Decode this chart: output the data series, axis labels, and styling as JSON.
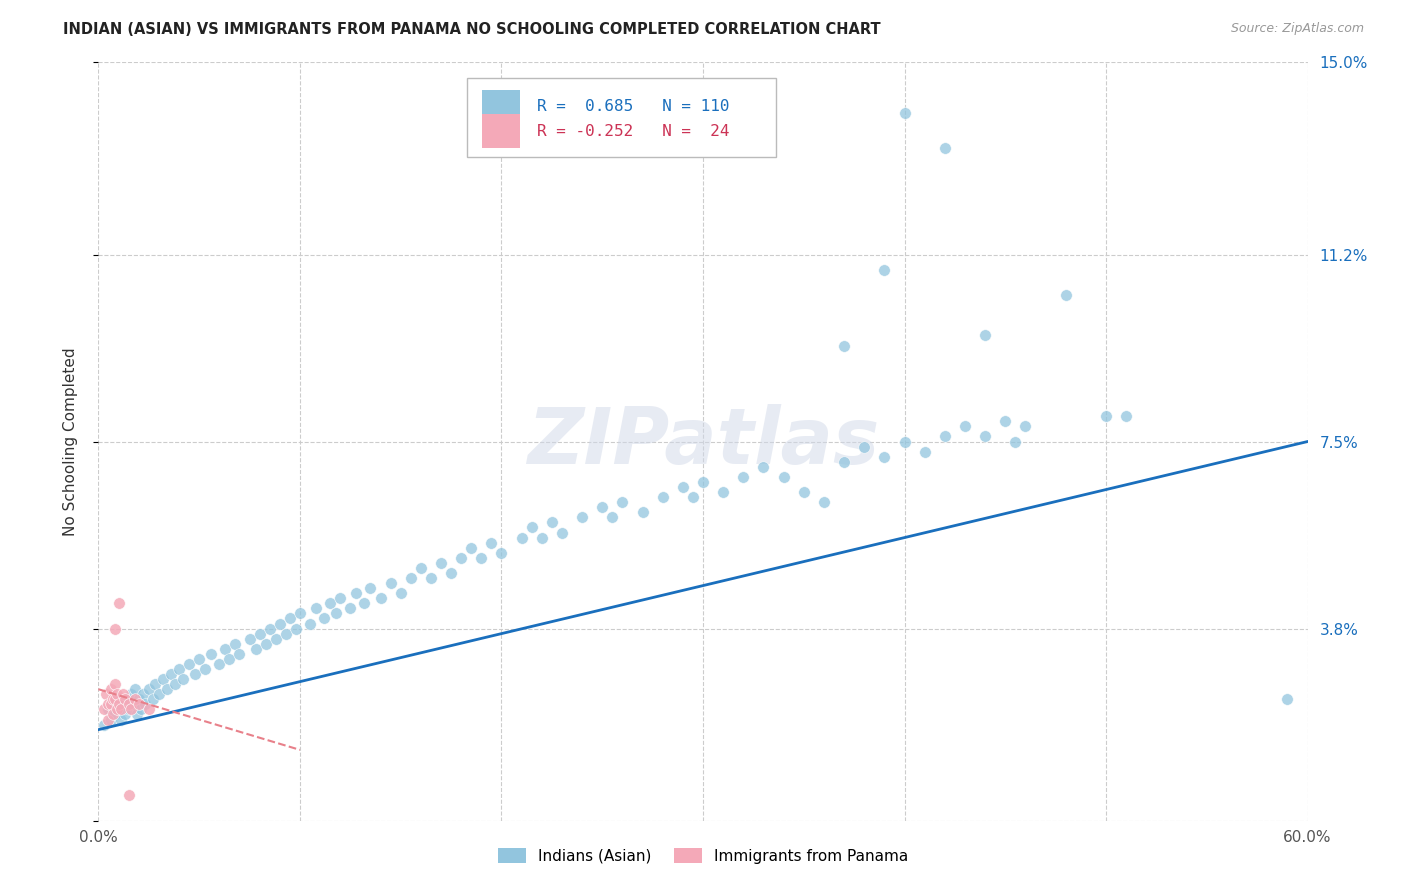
{
  "title": "INDIAN (ASIAN) VS IMMIGRANTS FROM PANAMA NO SCHOOLING COMPLETED CORRELATION CHART",
  "source": "Source: ZipAtlas.com",
  "ylabel": "No Schooling Completed",
  "xlim": [
    0.0,
    0.6
  ],
  "ylim": [
    0.0,
    0.15
  ],
  "yticks": [
    0.0,
    0.038,
    0.075,
    0.112,
    0.15
  ],
  "ytick_labels": [
    "",
    "3.8%",
    "7.5%",
    "11.2%",
    "15.0%"
  ],
  "xtick_labels": [
    "0.0%",
    "",
    "",
    "",
    "",
    "",
    "60.0%"
  ],
  "blue_color": "#92c5de",
  "pink_color": "#f4a9b8",
  "blue_line_color": "#1a6fbd",
  "pink_line_color": "#e8808a",
  "background_color": "#ffffff",
  "grid_color": "#cccccc",
  "blue_scatter": [
    [
      0.003,
      0.019
    ],
    [
      0.005,
      0.022
    ],
    [
      0.006,
      0.02
    ],
    [
      0.007,
      0.023
    ],
    [
      0.008,
      0.021
    ],
    [
      0.009,
      0.024
    ],
    [
      0.01,
      0.022
    ],
    [
      0.011,
      0.02
    ],
    [
      0.012,
      0.023
    ],
    [
      0.013,
      0.021
    ],
    [
      0.014,
      0.024
    ],
    [
      0.015,
      0.022
    ],
    [
      0.016,
      0.025
    ],
    [
      0.017,
      0.023
    ],
    [
      0.018,
      0.026
    ],
    [
      0.019,
      0.021
    ],
    [
      0.02,
      0.024
    ],
    [
      0.021,
      0.022
    ],
    [
      0.022,
      0.025
    ],
    [
      0.023,
      0.023
    ],
    [
      0.025,
      0.026
    ],
    [
      0.027,
      0.024
    ],
    [
      0.028,
      0.027
    ],
    [
      0.03,
      0.025
    ],
    [
      0.032,
      0.028
    ],
    [
      0.034,
      0.026
    ],
    [
      0.036,
      0.029
    ],
    [
      0.038,
      0.027
    ],
    [
      0.04,
      0.03
    ],
    [
      0.042,
      0.028
    ],
    [
      0.045,
      0.031
    ],
    [
      0.048,
      0.029
    ],
    [
      0.05,
      0.032
    ],
    [
      0.053,
      0.03
    ],
    [
      0.056,
      0.033
    ],
    [
      0.06,
      0.031
    ],
    [
      0.063,
      0.034
    ],
    [
      0.065,
      0.032
    ],
    [
      0.068,
      0.035
    ],
    [
      0.07,
      0.033
    ],
    [
      0.075,
      0.036
    ],
    [
      0.078,
      0.034
    ],
    [
      0.08,
      0.037
    ],
    [
      0.083,
      0.035
    ],
    [
      0.085,
      0.038
    ],
    [
      0.088,
      0.036
    ],
    [
      0.09,
      0.039
    ],
    [
      0.093,
      0.037
    ],
    [
      0.095,
      0.04
    ],
    [
      0.098,
      0.038
    ],
    [
      0.1,
      0.041
    ],
    [
      0.105,
      0.039
    ],
    [
      0.108,
      0.042
    ],
    [
      0.112,
      0.04
    ],
    [
      0.115,
      0.043
    ],
    [
      0.118,
      0.041
    ],
    [
      0.12,
      0.044
    ],
    [
      0.125,
      0.042
    ],
    [
      0.128,
      0.045
    ],
    [
      0.132,
      0.043
    ],
    [
      0.135,
      0.046
    ],
    [
      0.14,
      0.044
    ],
    [
      0.145,
      0.047
    ],
    [
      0.15,
      0.045
    ],
    [
      0.155,
      0.048
    ],
    [
      0.16,
      0.05
    ],
    [
      0.165,
      0.048
    ],
    [
      0.17,
      0.051
    ],
    [
      0.175,
      0.049
    ],
    [
      0.18,
      0.052
    ],
    [
      0.185,
      0.054
    ],
    [
      0.19,
      0.052
    ],
    [
      0.195,
      0.055
    ],
    [
      0.2,
      0.053
    ],
    [
      0.21,
      0.056
    ],
    [
      0.215,
      0.058
    ],
    [
      0.22,
      0.056
    ],
    [
      0.225,
      0.059
    ],
    [
      0.23,
      0.057
    ],
    [
      0.24,
      0.06
    ],
    [
      0.25,
      0.062
    ],
    [
      0.255,
      0.06
    ],
    [
      0.26,
      0.063
    ],
    [
      0.27,
      0.061
    ],
    [
      0.28,
      0.064
    ],
    [
      0.29,
      0.066
    ],
    [
      0.295,
      0.064
    ],
    [
      0.3,
      0.067
    ],
    [
      0.31,
      0.065
    ],
    [
      0.32,
      0.068
    ],
    [
      0.33,
      0.07
    ],
    [
      0.34,
      0.068
    ],
    [
      0.35,
      0.065
    ],
    [
      0.36,
      0.063
    ],
    [
      0.37,
      0.071
    ],
    [
      0.38,
      0.074
    ],
    [
      0.39,
      0.072
    ],
    [
      0.4,
      0.075
    ],
    [
      0.41,
      0.073
    ],
    [
      0.42,
      0.076
    ],
    [
      0.43,
      0.078
    ],
    [
      0.44,
      0.076
    ],
    [
      0.45,
      0.079
    ],
    [
      0.455,
      0.075
    ],
    [
      0.46,
      0.078
    ],
    [
      0.37,
      0.094
    ],
    [
      0.39,
      0.109
    ],
    [
      0.4,
      0.14
    ],
    [
      0.42,
      0.133
    ],
    [
      0.48,
      0.104
    ],
    [
      0.5,
      0.08
    ],
    [
      0.51,
      0.08
    ],
    [
      0.44,
      0.096
    ],
    [
      0.59,
      0.024
    ]
  ],
  "pink_scatter": [
    [
      0.003,
      0.022
    ],
    [
      0.004,
      0.025
    ],
    [
      0.005,
      0.023
    ],
    [
      0.005,
      0.02
    ],
    [
      0.006,
      0.023
    ],
    [
      0.006,
      0.026
    ],
    [
      0.007,
      0.024
    ],
    [
      0.007,
      0.021
    ],
    [
      0.008,
      0.024
    ],
    [
      0.008,
      0.027
    ],
    [
      0.009,
      0.022
    ],
    [
      0.009,
      0.025
    ],
    [
      0.01,
      0.023
    ],
    [
      0.011,
      0.022
    ],
    [
      0.012,
      0.025
    ],
    [
      0.013,
      0.024
    ],
    [
      0.015,
      0.023
    ],
    [
      0.016,
      0.022
    ],
    [
      0.018,
      0.024
    ],
    [
      0.02,
      0.023
    ],
    [
      0.025,
      0.022
    ],
    [
      0.008,
      0.038
    ],
    [
      0.01,
      0.043
    ],
    [
      0.015,
      0.005
    ]
  ],
  "blue_line": [
    [
      0.0,
      0.018
    ],
    [
      0.6,
      0.075
    ]
  ],
  "pink_line": [
    [
      0.0,
      0.026
    ],
    [
      0.1,
      0.014
    ]
  ]
}
